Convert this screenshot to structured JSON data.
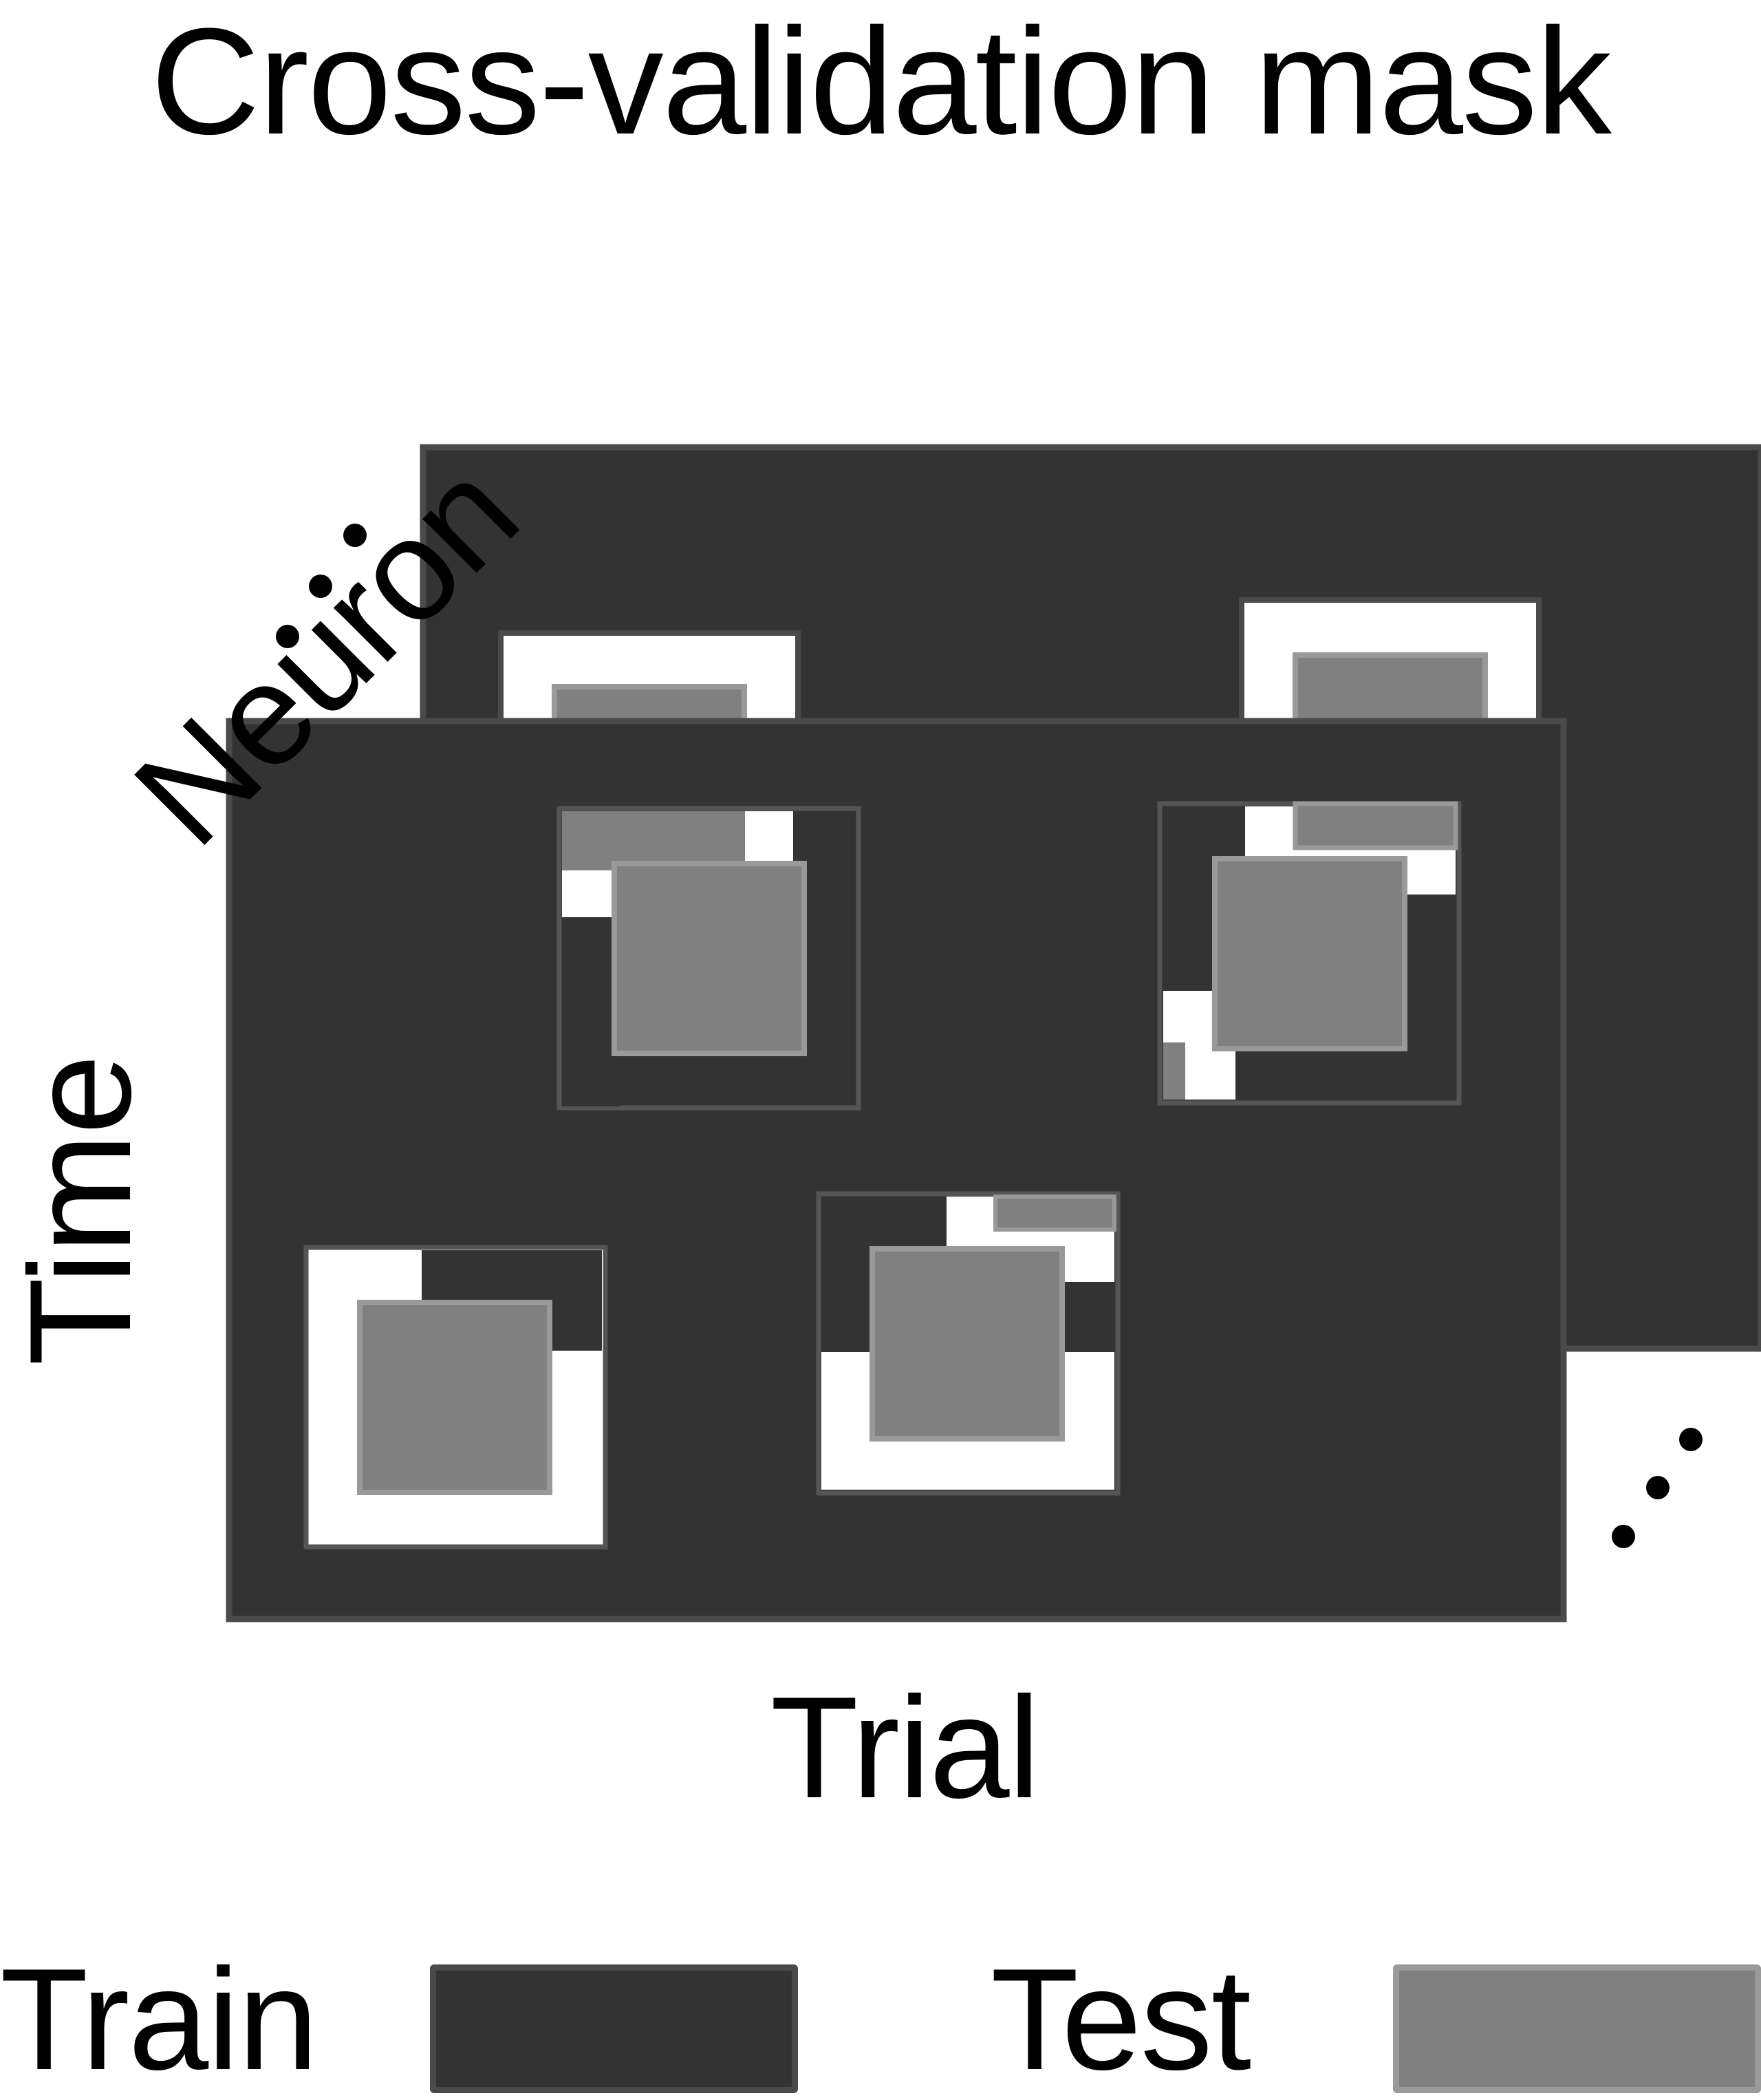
{
  "title": "Cross-validation mask",
  "axes": {
    "time_label": "Time",
    "neuron_label": "Neuron",
    "trial_label": "Trial"
  },
  "legend": {
    "train_label": "Train",
    "test_label": "Test"
  },
  "colors": {
    "train": "#333333",
    "test": "#808080",
    "background": "#ffffff",
    "outline": "#4a4a4a"
  }
}
